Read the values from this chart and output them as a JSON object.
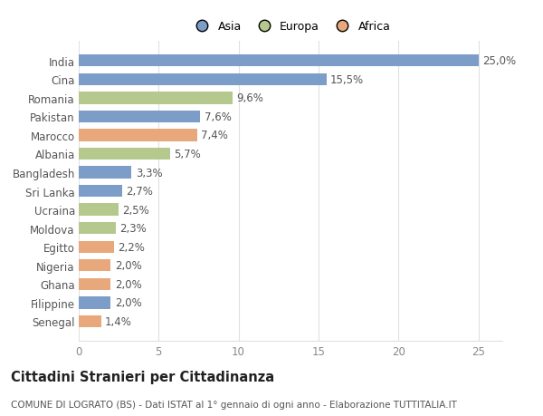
{
  "countries": [
    "India",
    "Cina",
    "Romania",
    "Pakistan",
    "Marocco",
    "Albania",
    "Bangladesh",
    "Sri Lanka",
    "Ucraina",
    "Moldova",
    "Egitto",
    "Nigeria",
    "Ghana",
    "Filippine",
    "Senegal"
  ],
  "values": [
    25.0,
    15.5,
    9.6,
    7.6,
    7.4,
    5.7,
    3.3,
    2.7,
    2.5,
    2.3,
    2.2,
    2.0,
    2.0,
    2.0,
    1.4
  ],
  "labels": [
    "25,0%",
    "15,5%",
    "9,6%",
    "7,6%",
    "7,4%",
    "5,7%",
    "3,3%",
    "2,7%",
    "2,5%",
    "2,3%",
    "2,2%",
    "2,0%",
    "2,0%",
    "2,0%",
    "1,4%"
  ],
  "continents": [
    "Asia",
    "Asia",
    "Europa",
    "Asia",
    "Africa",
    "Europa",
    "Asia",
    "Asia",
    "Europa",
    "Europa",
    "Africa",
    "Africa",
    "Africa",
    "Asia",
    "Africa"
  ],
  "colors": {
    "Asia": "#7b9dc7",
    "Europa": "#b5c98e",
    "Africa": "#e8a87c"
  },
  "legend_labels": [
    "Asia",
    "Europa",
    "Africa"
  ],
  "xlim": [
    0,
    26.5
  ],
  "xticks": [
    0,
    5,
    10,
    15,
    20,
    25
  ],
  "title": "Cittadini Stranieri per Cittadinanza",
  "subtitle": "COMUNE DI LOGRATO (BS) - Dati ISTAT al 1° gennaio di ogni anno - Elaborazione TUTTITALIA.IT",
  "background_color": "#ffffff",
  "grid_color": "#e0e0e0",
  "bar_height": 0.65,
  "label_fontsize": 8.5,
  "country_fontsize": 8.5,
  "title_fontsize": 10.5,
  "subtitle_fontsize": 7.5,
  "xtick_fontsize": 8.5,
  "legend_fontsize": 9
}
